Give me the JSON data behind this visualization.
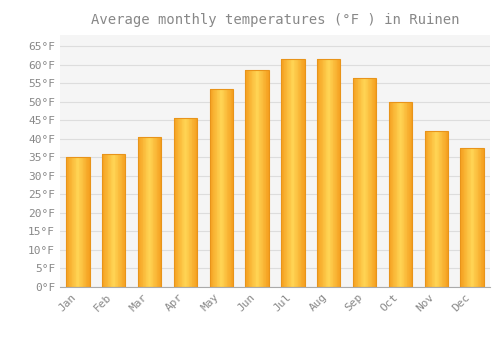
{
  "title": "Average monthly temperatures (°F ) in Ruinen",
  "months": [
    "Jan",
    "Feb",
    "Mar",
    "Apr",
    "May",
    "Jun",
    "Jul",
    "Aug",
    "Sep",
    "Oct",
    "Nov",
    "Dec"
  ],
  "values": [
    35,
    36,
    40.5,
    45.5,
    53.5,
    58.5,
    61.5,
    61.5,
    56.5,
    50,
    42,
    37.5
  ],
  "bar_color_center": "#FFD050",
  "bar_color_edge": "#F5A623",
  "background_color": "#FFFFFF",
  "plot_bg_color": "#F5F5F5",
  "grid_color": "#DDDDDD",
  "text_color": "#888888",
  "ylim": [
    0,
    68
  ],
  "yticks": [
    0,
    5,
    10,
    15,
    20,
    25,
    30,
    35,
    40,
    45,
    50,
    55,
    60,
    65
  ],
  "ytick_labels": [
    "0°F",
    "5°F",
    "10°F",
    "15°F",
    "20°F",
    "25°F",
    "30°F",
    "35°F",
    "40°F",
    "45°F",
    "50°F",
    "55°F",
    "60°F",
    "65°F"
  ],
  "title_fontsize": 10,
  "tick_fontsize": 8,
  "bar_width": 0.65
}
